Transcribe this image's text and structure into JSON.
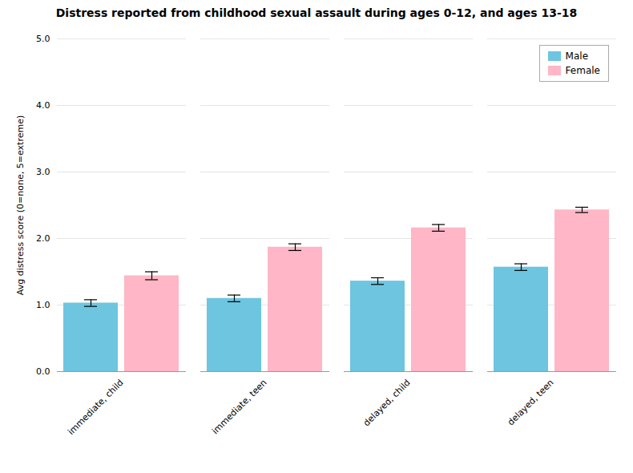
{
  "chart_data": {
    "type": "bar",
    "title": "Distress reported from childhood sexual assault during ages 0-12, and ages 13-18",
    "ylabel": "Avg distress score (0=none, 5=extreme)",
    "categories": [
      "immediate, child",
      "immediate, teen",
      "delayed, child",
      "delayed, teen"
    ],
    "series": [
      {
        "name": "Male",
        "color": "#6DC5E0",
        "values": [
          1.03,
          1.1,
          1.36,
          1.57
        ],
        "errors": [
          0.05,
          0.05,
          0.05,
          0.05
        ]
      },
      {
        "name": "Female",
        "color": "#FFB6C6",
        "values": [
          1.44,
          1.87,
          2.16,
          2.43
        ],
        "errors": [
          0.06,
          0.05,
          0.05,
          0.04
        ]
      }
    ],
    "ylim": [
      0,
      5
    ],
    "yticks": [
      0,
      1,
      2,
      3,
      4,
      5
    ],
    "grid": true,
    "legend": "upper right"
  }
}
